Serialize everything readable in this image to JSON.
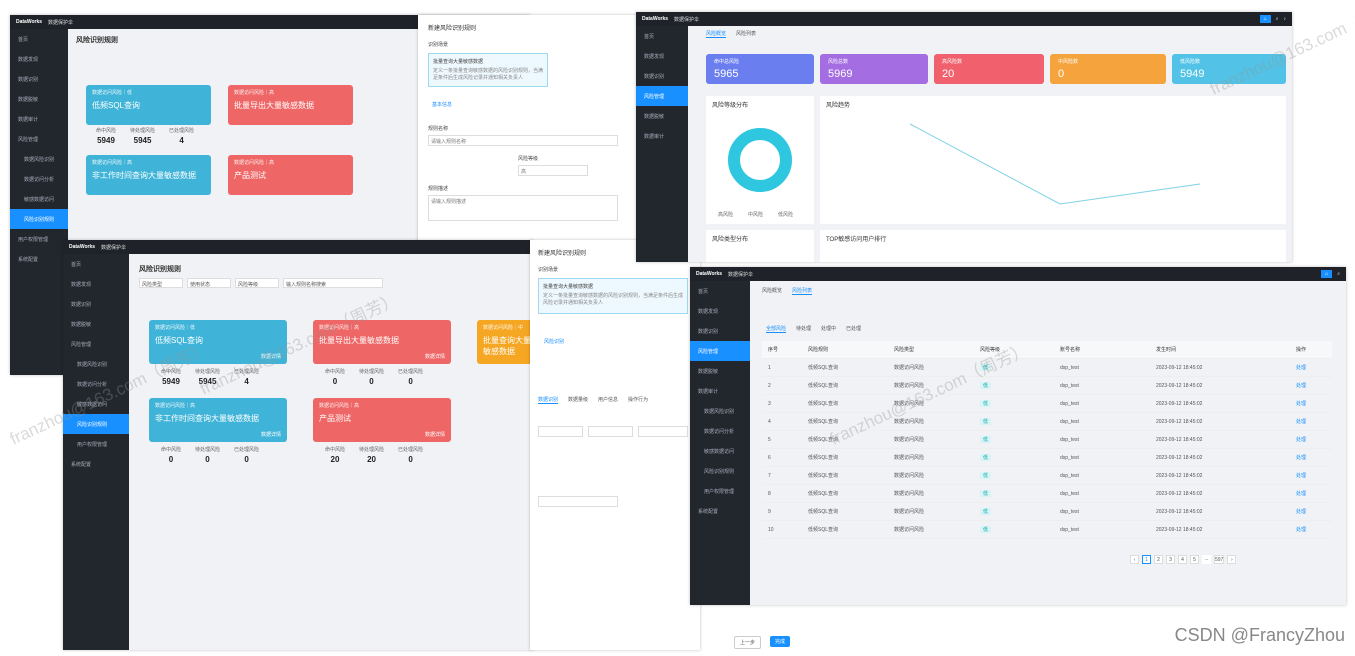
{
  "brand": "DataWorks",
  "product": "数据保护伞",
  "menu": [
    "首页",
    "数据发现",
    "数据识别",
    "数据脱敏",
    "数据审计",
    "风险管理",
    "数据风险识别",
    "数据访问分析",
    "敏感数据访问",
    "风险识别规则",
    "用户权限管理",
    "系统配置"
  ],
  "risk_page": {
    "title": "风险识别规则",
    "filters": [
      "风险类型",
      "使用状态",
      "风险等级",
      "输入规则名称搜索"
    ],
    "cards": [
      {
        "tag": "数据访问风险｜低",
        "title": "低频SQL查询",
        "sub": "数据详情",
        "stats": [
          [
            "命中风险",
            "5949"
          ],
          [
            "待处理风险",
            "5945"
          ],
          [
            "已处理风险",
            "4"
          ]
        ]
      },
      {
        "tag": "数据访问风险｜高",
        "title": "批量导出大量敏感数据",
        "sub": "数据详情",
        "stats": [
          [
            "命中风险",
            "0"
          ],
          [
            "待处理风险",
            "0"
          ],
          [
            "已处理风险",
            "0"
          ]
        ]
      },
      {
        "tag": "数据访问风险｜中",
        "title": "批量查询大量敏感数据",
        "sub": "数据详情",
        "stats": [
          [
            "命中风险",
            "0"
          ],
          [
            "待处理风险",
            "0"
          ],
          [
            "已处理风险",
            "0"
          ]
        ]
      },
      {
        "tag": "数据访问风险｜高",
        "title": "非工作时间查询大量敏感数据",
        "sub": "数据详情",
        "stats": [
          [
            "命中风险",
            "0"
          ],
          [
            "待处理风险",
            "0"
          ],
          [
            "已处理风险",
            "0"
          ]
        ]
      },
      {
        "tag": "数据访问风险｜高",
        "title": "产品测试",
        "sub": "数据详情",
        "stats": [
          [
            "命中风险",
            "20"
          ],
          [
            "待处理风险",
            "20"
          ],
          [
            "已处理风险",
            "0"
          ]
        ]
      }
    ]
  },
  "new_rule": {
    "title": "新建风险识别规则",
    "section": "识别场景",
    "scene_title": "批量查询大量敏感数据",
    "scene_desc": "定义一条批量查询敏感数据的风险识别规则，当满足条件后生成风险记录并通知相关负责人",
    "step1": "基本信息",
    "step2": "风险识别",
    "name_label": "规则名称",
    "name_value": "请输入规则名称",
    "level_label": "风险等级",
    "level_value": "高",
    "desc_label": "规则描述",
    "desc_ph": "请输入规则描述",
    "tabs": [
      "数据识别",
      "数据量级",
      "用户信息",
      "操作行为"
    ],
    "prev": "上一步",
    "next": "完成"
  },
  "dashboard": {
    "tabs": [
      "风险概览",
      "风险列表"
    ],
    "kpis": [
      {
        "label": "命中总风险",
        "value": "5965",
        "color": "#6b7ef0"
      },
      {
        "label": "风险总数",
        "value": "5969",
        "color": "#a56de2"
      },
      {
        "label": "高风险数",
        "value": "20",
        "color": "#f0616d"
      },
      {
        "label": "中风险数",
        "value": "0",
        "color": "#f5a33d"
      },
      {
        "label": "低风险数",
        "value": "5949",
        "color": "#52c3e6"
      }
    ],
    "dist_title": "风险等级分布",
    "trend_title": "风险趋势",
    "type_title": "风险类型分布",
    "top_title": "TOP敏感访问用户排行",
    "legend": [
      "高风险",
      "中风险",
      "低风险"
    ]
  },
  "list": {
    "tabs": [
      "风险概览",
      "风险列表"
    ],
    "subtabs": [
      "全部风险",
      "待处理",
      "处理中",
      "已处理"
    ],
    "headers": [
      "序号",
      "风险规则",
      "风险类型",
      "风险等级",
      "账号名称",
      "发生时间",
      "操作"
    ],
    "rows": [
      [
        "1",
        "低频SQL查询",
        "数据访问风险",
        "低",
        "dsp_test",
        "2023-09-12 18:45:02",
        "处理"
      ],
      [
        "2",
        "低频SQL查询",
        "数据访问风险",
        "低",
        "dsp_test",
        "2023-09-12 18:45:02",
        "处理"
      ],
      [
        "3",
        "低频SQL查询",
        "数据访问风险",
        "低",
        "dsp_test",
        "2023-09-12 18:45:02",
        "处理"
      ],
      [
        "4",
        "低频SQL查询",
        "数据访问风险",
        "低",
        "dsp_test",
        "2023-09-12 18:45:02",
        "处理"
      ],
      [
        "5",
        "低频SQL查询",
        "数据访问风险",
        "低",
        "dsp_test",
        "2023-09-12 18:45:02",
        "处理"
      ],
      [
        "6",
        "低频SQL查询",
        "数据访问风险",
        "低",
        "dsp_test",
        "2023-09-12 18:45:02",
        "处理"
      ],
      [
        "7",
        "低频SQL查询",
        "数据访问风险",
        "低",
        "dsp_test",
        "2023-09-12 18:45:02",
        "处理"
      ],
      [
        "8",
        "低频SQL查询",
        "数据访问风险",
        "低",
        "dsp_test",
        "2023-09-12 18:45:02",
        "处理"
      ],
      [
        "9",
        "低频SQL查询",
        "数据访问风险",
        "低",
        "dsp_test",
        "2023-09-12 18:45:02",
        "处理"
      ],
      [
        "10",
        "低频SQL查询",
        "数据访问风险",
        "低",
        "dsp_test",
        "2023-09-12 18:45:02",
        "处理"
      ]
    ],
    "pager": [
      "1",
      "2",
      "3",
      "4",
      "5",
      "...",
      "597"
    ]
  },
  "watermark": "franzhou@163.com（周芳）",
  "footer": "CSDN @FrancyZhou"
}
